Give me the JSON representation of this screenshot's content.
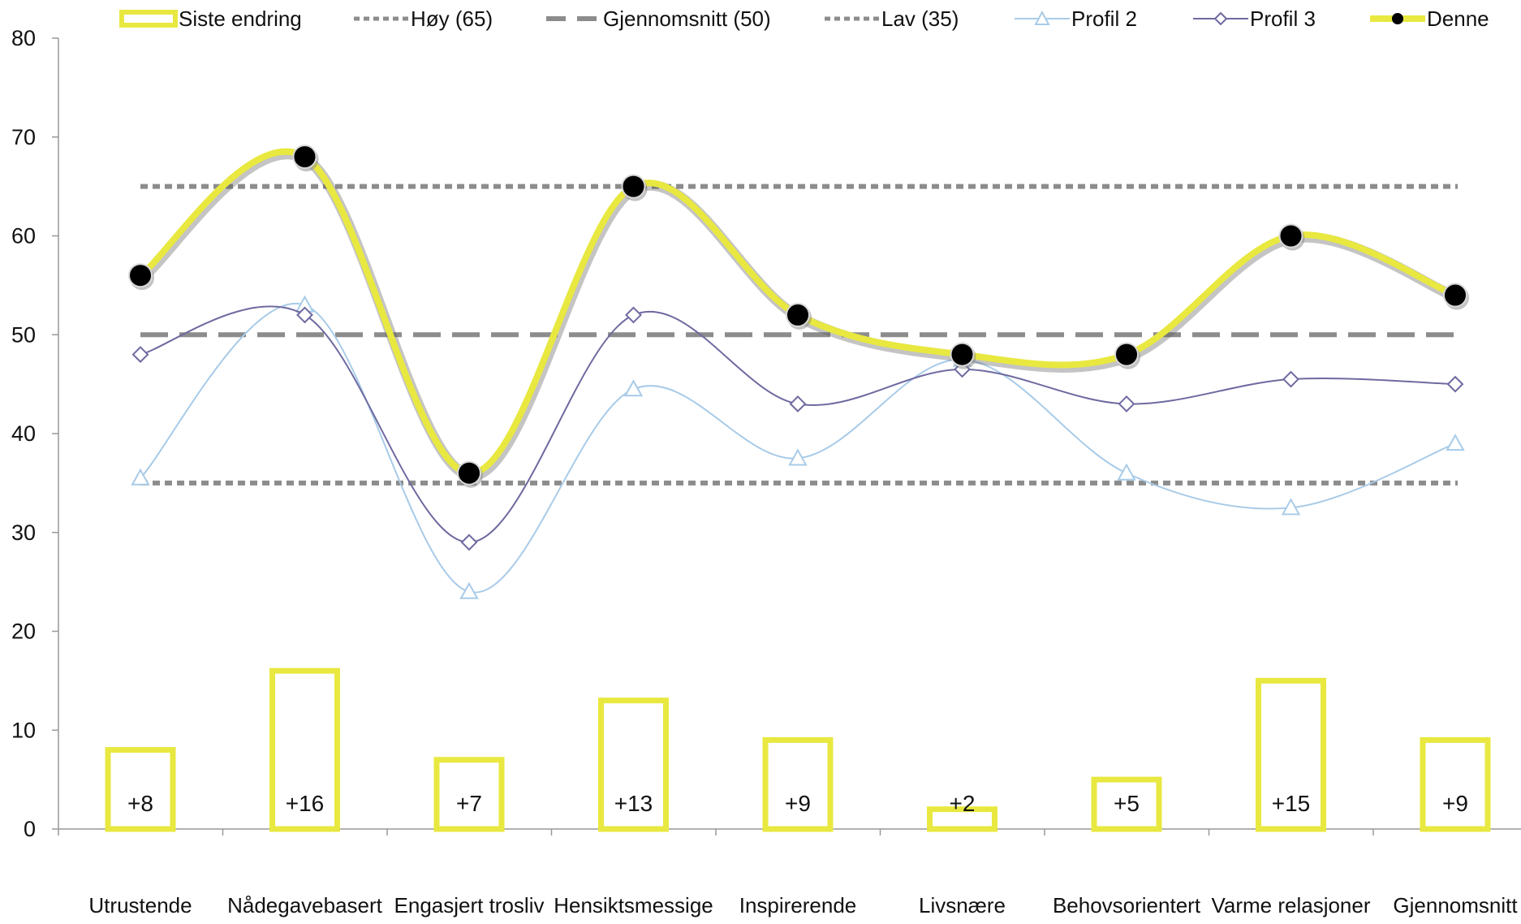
{
  "chart_data": {
    "type": "line",
    "title": "",
    "xlabel": "",
    "ylabel": "",
    "ylim": [
      0,
      80
    ],
    "yticks": [
      0,
      10,
      20,
      30,
      40,
      50,
      60,
      70,
      80
    ],
    "grid": false,
    "legend_position": "top",
    "categories": [
      "Utrustende",
      "Nådegavebasert",
      "Engasjert trosliv",
      "Hensiktsmessige",
      "Inspirerende",
      "Livsnære",
      "Behovsorientert",
      "Varme relasjoner",
      "Gjennomsnitt"
    ],
    "reference_lines": [
      {
        "name": "Høy (65)",
        "value": 65,
        "color": "#8c8c8c",
        "style": "dotted"
      },
      {
        "name": "Gjennomsnitt (50)",
        "value": 50,
        "color": "#8c8c8c",
        "style": "dashed"
      },
      {
        "name": "Lav (35)",
        "value": 35,
        "color": "#8c8c8c",
        "style": "dotted"
      }
    ],
    "bars": {
      "name": "Siste endring",
      "color": "#e8e840",
      "values": [
        8,
        16,
        7,
        13,
        9,
        2,
        5,
        15,
        9
      ],
      "labels": [
        "+8",
        "+16",
        "+7",
        "+13",
        "+9",
        "+2",
        "+5",
        "+15",
        "+9"
      ]
    },
    "series": [
      {
        "name": "Profil 2",
        "color": "#a8cbe8",
        "marker": "triangle",
        "values": [
          35.5,
          53,
          24,
          44.5,
          37.5,
          47.5,
          36,
          32.5,
          39
        ]
      },
      {
        "name": "Profil 3",
        "color": "#6e6aa0",
        "marker": "diamond",
        "values": [
          48,
          52,
          29,
          52,
          43,
          46.5,
          43,
          45.5,
          45
        ]
      },
      {
        "name": "Denne",
        "color": "#e8e840",
        "marker": "circle",
        "values": [
          56,
          68,
          36,
          65,
          52,
          48,
          48,
          60,
          54
        ]
      }
    ],
    "legend": [
      "Siste endring",
      "Høy (65)",
      "Gjennomsnitt (50)",
      "Lav (35)",
      "Profil 2",
      "Profil 3",
      "Denne"
    ]
  }
}
